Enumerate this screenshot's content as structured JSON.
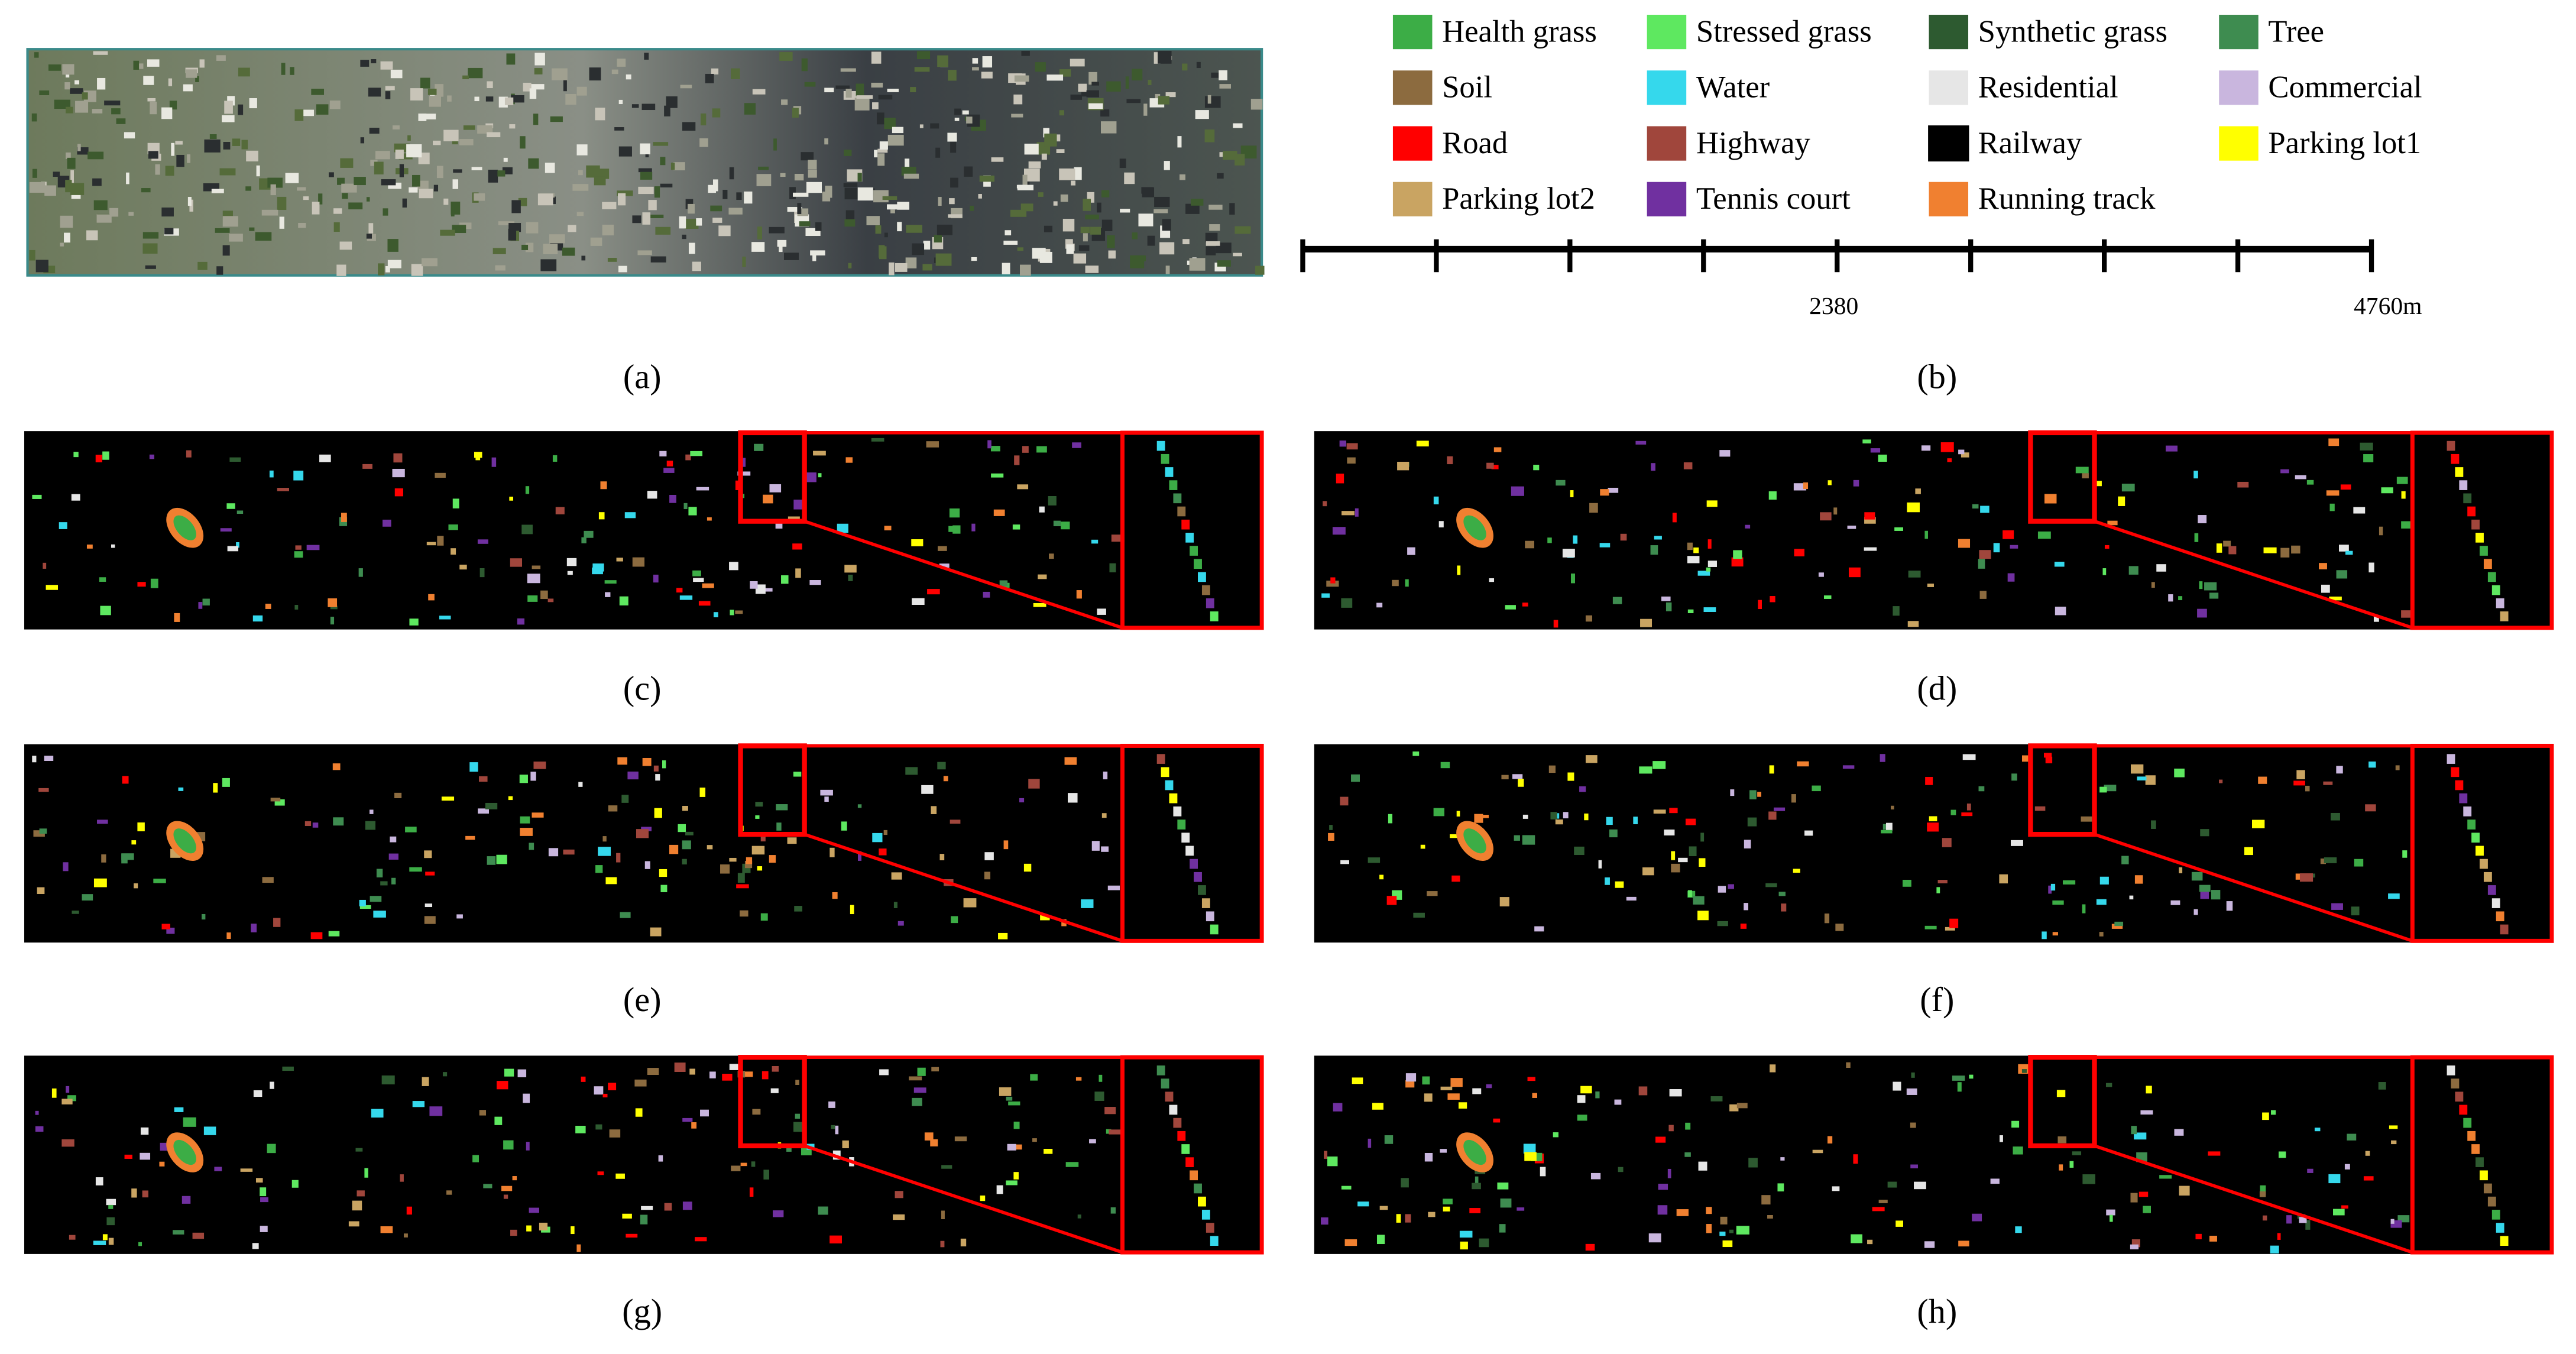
{
  "legend": [
    {
      "name": "Health grass",
      "color": "#3cad46"
    },
    {
      "name": "Stressed grass",
      "color": "#5ee860"
    },
    {
      "name": "Synthetic grass",
      "color": "#2d5a30"
    },
    {
      "name": "Tree",
      "color": "#3e8c50"
    },
    {
      "name": "Soil",
      "color": "#8c6b3f"
    },
    {
      "name": "Water",
      "color": "#35d8ec"
    },
    {
      "name": "Residential",
      "color": "#e6e6e6"
    },
    {
      "name": "Commercial",
      "color": "#c9b6de"
    },
    {
      "name": "Road",
      "color": "#ff0000"
    },
    {
      "name": "Highway",
      "color": "#a0463c"
    },
    {
      "name": "Railway",
      "color": "#000000"
    },
    {
      "name": "Parking lot1",
      "color": "#ffff00"
    },
    {
      "name": "Parking lot2",
      "color": "#c9a462"
    },
    {
      "name": "Tennis court",
      "color": "#7030a0"
    },
    {
      "name": "Running track",
      "color": "#f08030"
    }
  ],
  "scale": {
    "labels": [
      "2380",
      "4760m"
    ]
  },
  "panels": [
    "(a)",
    "(b)",
    "(c)",
    "(d)",
    "(e)",
    "(f)",
    "(g)",
    "(h)"
  ]
}
